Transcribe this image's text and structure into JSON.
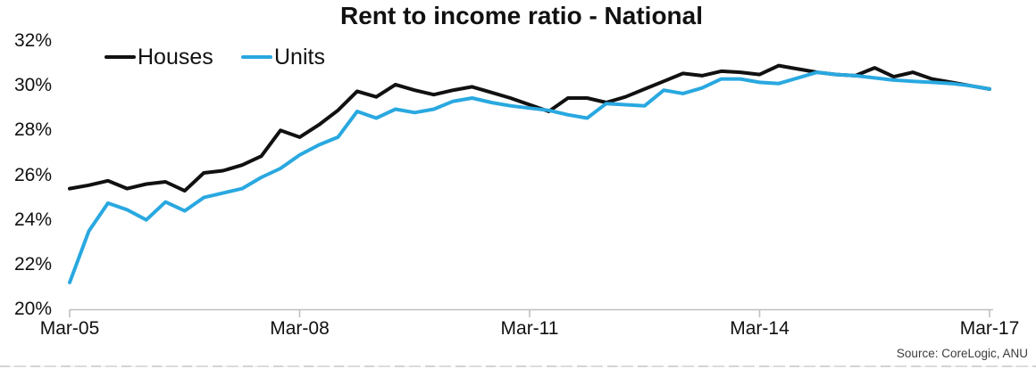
{
  "title": "Rent to income ratio - National",
  "source": "Source: CoreLogic, ANU",
  "colors": {
    "houses": "#111111",
    "units": "#29a8e0",
    "axis": "#bfbfbf",
    "text": "#111111"
  },
  "chart_data": {
    "type": "line",
    "title": "Rent to income ratio - National",
    "xlabel": "",
    "ylabel": "",
    "ylim": [
      20,
      32
    ],
    "grid": false,
    "legend_position": "top-left",
    "y_tick_labels": [
      "32%",
      "30%",
      "28%",
      "26%",
      "24%",
      "22%",
      "20%"
    ],
    "x_tick_labels": [
      "Mar-05",
      "Mar-08",
      "Mar-11",
      "Mar-14",
      "Mar-17"
    ],
    "x": [
      "Mar-05",
      "Jun-05",
      "Sep-05",
      "Dec-05",
      "Mar-06",
      "Jun-06",
      "Sep-06",
      "Dec-06",
      "Mar-07",
      "Jun-07",
      "Sep-07",
      "Dec-07",
      "Mar-08",
      "Jun-08",
      "Sep-08",
      "Dec-08",
      "Mar-09",
      "Jun-09",
      "Sep-09",
      "Dec-09",
      "Mar-10",
      "Jun-10",
      "Sep-10",
      "Dec-10",
      "Mar-11",
      "Jun-11",
      "Sep-11",
      "Dec-11",
      "Mar-12",
      "Jun-12",
      "Sep-12",
      "Dec-12",
      "Mar-13",
      "Jun-13",
      "Sep-13",
      "Dec-13",
      "Mar-14",
      "Jun-14",
      "Sep-14",
      "Dec-14",
      "Mar-15",
      "Jun-15",
      "Sep-15",
      "Dec-15",
      "Mar-16",
      "Jun-16",
      "Sep-16",
      "Dec-16",
      "Mar-17"
    ],
    "series": [
      {
        "name": "Houses",
        "color": "#111111",
        "values": [
          25.4,
          25.55,
          25.75,
          25.4,
          25.6,
          25.7,
          25.3,
          26.1,
          26.2,
          26.45,
          26.85,
          28.0,
          27.7,
          28.25,
          28.9,
          29.75,
          29.5,
          30.05,
          29.8,
          29.6,
          29.8,
          29.95,
          29.7,
          29.45,
          29.15,
          28.85,
          29.45,
          29.45,
          29.25,
          29.5,
          29.85,
          30.2,
          30.55,
          30.45,
          30.65,
          30.6,
          30.5,
          30.9,
          30.75,
          30.6,
          30.5,
          30.45,
          30.8,
          30.4,
          30.6,
          30.3,
          30.15,
          30.0,
          29.85
        ]
      },
      {
        "name": "Units",
        "color": "#29a8e0",
        "values": [
          21.2,
          23.5,
          24.75,
          24.45,
          24.0,
          24.8,
          24.4,
          25.0,
          25.2,
          25.4,
          25.9,
          26.3,
          26.9,
          27.35,
          27.7,
          28.85,
          28.55,
          28.95,
          28.8,
          28.95,
          29.3,
          29.45,
          29.25,
          29.1,
          29.0,
          28.9,
          28.7,
          28.55,
          29.2,
          29.15,
          29.1,
          29.8,
          29.65,
          29.9,
          30.3,
          30.3,
          30.15,
          30.1,
          30.35,
          30.6,
          30.5,
          30.45,
          30.35,
          30.25,
          30.2,
          30.15,
          30.1,
          30.0,
          29.85
        ]
      }
    ]
  }
}
